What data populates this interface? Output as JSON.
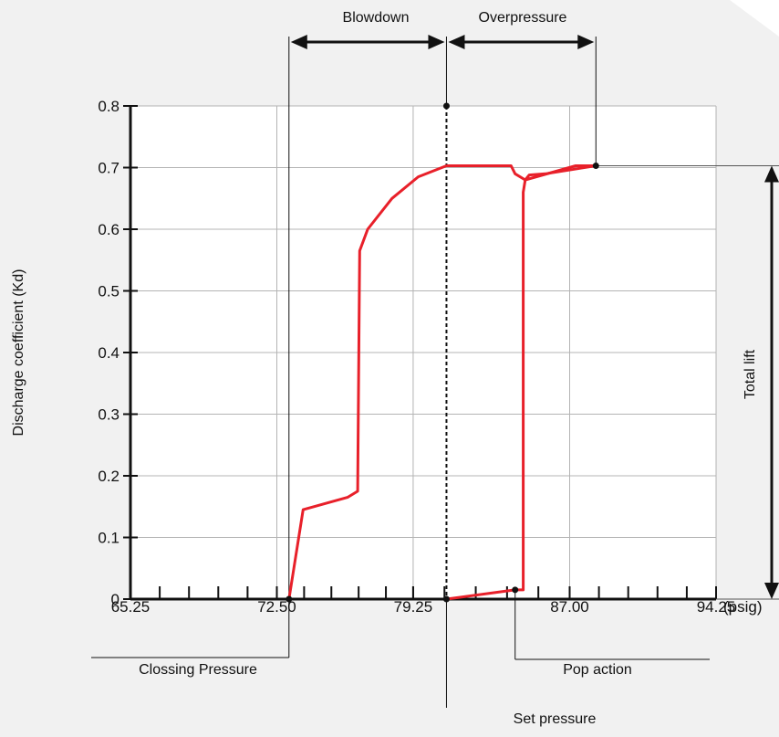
{
  "chart_data": {
    "type": "line",
    "title": "",
    "xlabel": "",
    "ylabel": "Discharge coefficient   (Kd)",
    "x_unit_label": "(psig)",
    "x_ticks": [
      65.25,
      72.5,
      79.25,
      87.0,
      94.25
    ],
    "x_tick_labels": [
      "65.25",
      "72.50",
      "79.25",
      "87.00",
      "94.25"
    ],
    "y_ticks": [
      0,
      0.1,
      0.2,
      0.3,
      0.4,
      0.5,
      0.6,
      0.7,
      0.8
    ],
    "y_tick_labels": [
      "0",
      "0.1",
      "0.2",
      "0.3",
      "0.4",
      "0.5",
      "0.6",
      "0.7",
      "0.8"
    ],
    "xlim": [
      65.25,
      94.25
    ],
    "ylim": [
      0,
      0.8
    ],
    "grid": true,
    "series": [
      {
        "color": "#e8202a",
        "x": [
          73.1,
          73.8,
          76.0,
          76.5,
          76.6,
          77.0,
          78.2,
          79.5,
          80.9,
          81.2,
          84.0,
          84.1,
          84.3,
          84.8,
          87.3,
          88.3
        ],
        "y": [
          0.0,
          0.145,
          0.165,
          0.175,
          0.565,
          0.6,
          0.65,
          0.685,
          0.703,
          0.703,
          0.703,
          0.703,
          0.69,
          0.68,
          0.703,
          0.703
        ]
      },
      {
        "color": "#e8202a",
        "x": [
          80.9,
          84.3,
          84.7,
          84.7,
          84.8,
          85.0,
          85.8,
          88.3
        ],
        "y": [
          0.0,
          0.015,
          0.015,
          0.66,
          0.68,
          0.688,
          0.69,
          0.703
        ]
      }
    ],
    "points": [
      {
        "x": 73.1,
        "y": 0.0
      },
      {
        "x": 80.9,
        "y": 0.0
      },
      {
        "x": 84.3,
        "y": 0.015
      },
      {
        "x": 88.3,
        "y": 0.703
      },
      {
        "x": 80.9,
        "y": 0.8
      }
    ],
    "dashed_line_x": 80.9,
    "annotations": {
      "blowdown": "Blowdown",
      "overpressure": "Overpressure",
      "total_lift": "Total lift",
      "closing_pressure": "Clossing Pressure",
      "pop_action": "Pop action",
      "set_pressure": "Set pressure"
    }
  }
}
